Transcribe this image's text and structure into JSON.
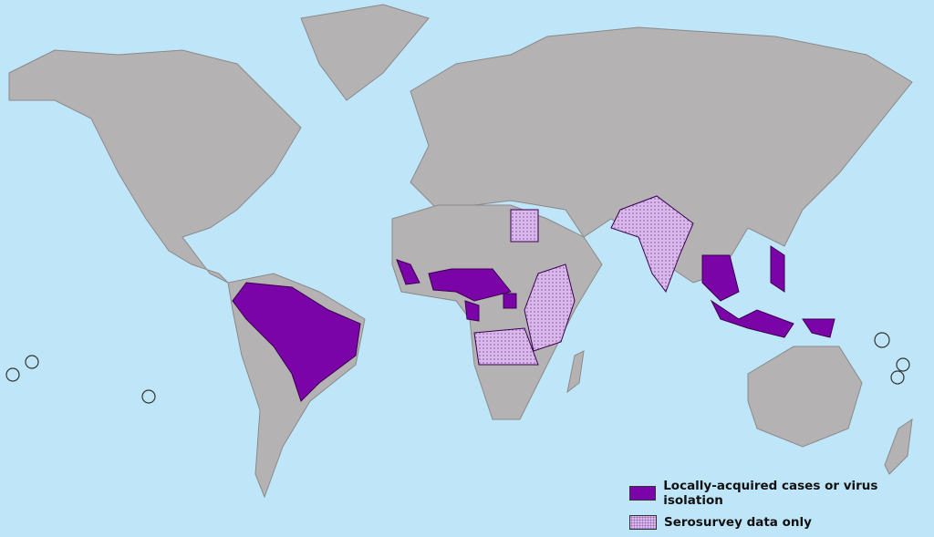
{
  "map": {
    "colors": {
      "ocean": "#bfe6f8",
      "land": "#b4b2b2",
      "local": "#7a04a8",
      "serosurvey": "#d9b8ea"
    },
    "legend": [
      {
        "key": "local",
        "label": "Locally-acquired cases or virus isolation"
      },
      {
        "key": "serosurvey",
        "label": "Serosurvey data only"
      }
    ]
  }
}
